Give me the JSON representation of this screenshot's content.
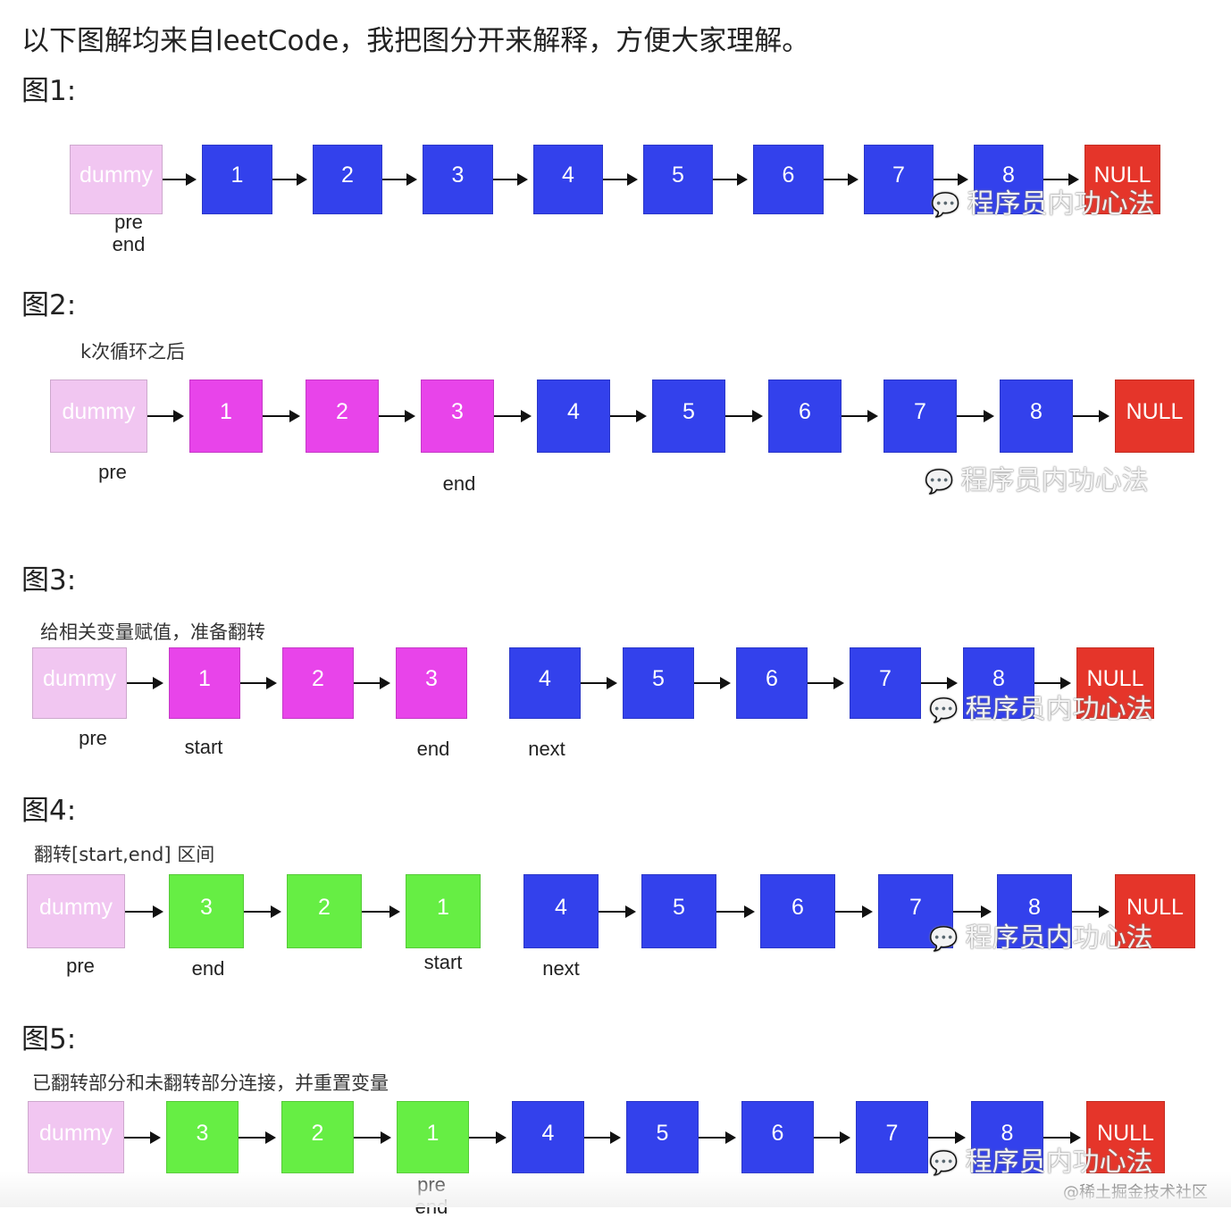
{
  "intro": "以下图解均来自leetCode，我把图分开来解释，方便大家理解。",
  "colors": {
    "dummy": "#f1c6f1",
    "blue": "#3341ec",
    "magenta": "#e844ea",
    "green": "#66ee44",
    "red": "#e5352a"
  },
  "watermark": "程序员内功心法",
  "footer_watermark": "@稀土掘金技术社区",
  "figures": [
    {
      "heading": "图1:",
      "caption": "",
      "nodes": [
        {
          "label": "dummy",
          "kind": "dummy"
        },
        {
          "label": "1",
          "kind": "blue"
        },
        {
          "label": "2",
          "kind": "blue"
        },
        {
          "label": "3",
          "kind": "blue"
        },
        {
          "label": "4",
          "kind": "blue"
        },
        {
          "label": "5",
          "kind": "blue"
        },
        {
          "label": "6",
          "kind": "blue"
        },
        {
          "label": "7",
          "kind": "blue"
        },
        {
          "label": "8",
          "kind": "blue"
        },
        {
          "label": "NULL",
          "kind": "red"
        }
      ],
      "arrows": [
        true,
        true,
        true,
        true,
        true,
        true,
        true,
        true,
        true
      ],
      "pointers": [
        {
          "label": "pre",
          "node": 0
        },
        {
          "label": "end",
          "node": 0
        }
      ]
    },
    {
      "heading": "图2:",
      "caption": "k次循环之后",
      "nodes": [
        {
          "label": "dummy",
          "kind": "dummy"
        },
        {
          "label": "1",
          "kind": "magenta"
        },
        {
          "label": "2",
          "kind": "magenta"
        },
        {
          "label": "3",
          "kind": "magenta"
        },
        {
          "label": "4",
          "kind": "blue"
        },
        {
          "label": "5",
          "kind": "blue"
        },
        {
          "label": "6",
          "kind": "blue"
        },
        {
          "label": "7",
          "kind": "blue"
        },
        {
          "label": "8",
          "kind": "blue"
        },
        {
          "label": "NULL",
          "kind": "red"
        }
      ],
      "arrows": [
        true,
        true,
        true,
        true,
        true,
        true,
        true,
        true,
        true
      ],
      "pointers": [
        {
          "label": "pre",
          "node": 0
        },
        {
          "label": "end",
          "node": 3
        }
      ]
    },
    {
      "heading": "图3:",
      "caption": "给相关变量赋值，准备翻转",
      "nodes": [
        {
          "label": "dummy",
          "kind": "dummy"
        },
        {
          "label": "1",
          "kind": "magenta"
        },
        {
          "label": "2",
          "kind": "magenta"
        },
        {
          "label": "3",
          "kind": "magenta"
        },
        {
          "label": "4",
          "kind": "blue"
        },
        {
          "label": "5",
          "kind": "blue"
        },
        {
          "label": "6",
          "kind": "blue"
        },
        {
          "label": "7",
          "kind": "blue"
        },
        {
          "label": "8",
          "kind": "blue"
        },
        {
          "label": "NULL",
          "kind": "red"
        }
      ],
      "arrows": [
        true,
        true,
        true,
        false,
        true,
        true,
        true,
        true,
        true
      ],
      "pointers": [
        {
          "label": "pre",
          "node": 0
        },
        {
          "label": "start",
          "node": 1
        },
        {
          "label": "end",
          "node": 3
        },
        {
          "label": "next",
          "node": 4
        }
      ]
    },
    {
      "heading": "图4:",
      "caption": "翻转[start,end] 区间",
      "nodes": [
        {
          "label": "dummy",
          "kind": "dummy"
        },
        {
          "label": "3",
          "kind": "green"
        },
        {
          "label": "2",
          "kind": "green"
        },
        {
          "label": "1",
          "kind": "green"
        },
        {
          "label": "4",
          "kind": "blue"
        },
        {
          "label": "5",
          "kind": "blue"
        },
        {
          "label": "6",
          "kind": "blue"
        },
        {
          "label": "7",
          "kind": "blue"
        },
        {
          "label": "8",
          "kind": "blue"
        },
        {
          "label": "NULL",
          "kind": "red"
        }
      ],
      "arrows": [
        true,
        true,
        true,
        false,
        true,
        true,
        true,
        true,
        true
      ],
      "pointers": [
        {
          "label": "pre",
          "node": 0
        },
        {
          "label": "end",
          "node": 1
        },
        {
          "label": "start",
          "node": 3
        },
        {
          "label": "next",
          "node": 4
        }
      ]
    },
    {
      "heading": "图5:",
      "caption": "已翻转部分和未翻转部分连接，并重置变量",
      "nodes": [
        {
          "label": "dummy",
          "kind": "dummy"
        },
        {
          "label": "3",
          "kind": "green"
        },
        {
          "label": "2",
          "kind": "green"
        },
        {
          "label": "1",
          "kind": "green"
        },
        {
          "label": "4",
          "kind": "blue"
        },
        {
          "label": "5",
          "kind": "blue"
        },
        {
          "label": "6",
          "kind": "blue"
        },
        {
          "label": "7",
          "kind": "blue"
        },
        {
          "label": "8",
          "kind": "blue"
        },
        {
          "label": "NULL",
          "kind": "red"
        }
      ],
      "arrows": [
        true,
        true,
        true,
        true,
        true,
        true,
        true,
        true,
        true
      ],
      "pointers": [
        {
          "label": "pre",
          "node": 3
        },
        {
          "label": "end",
          "node": 3
        }
      ]
    }
  ]
}
